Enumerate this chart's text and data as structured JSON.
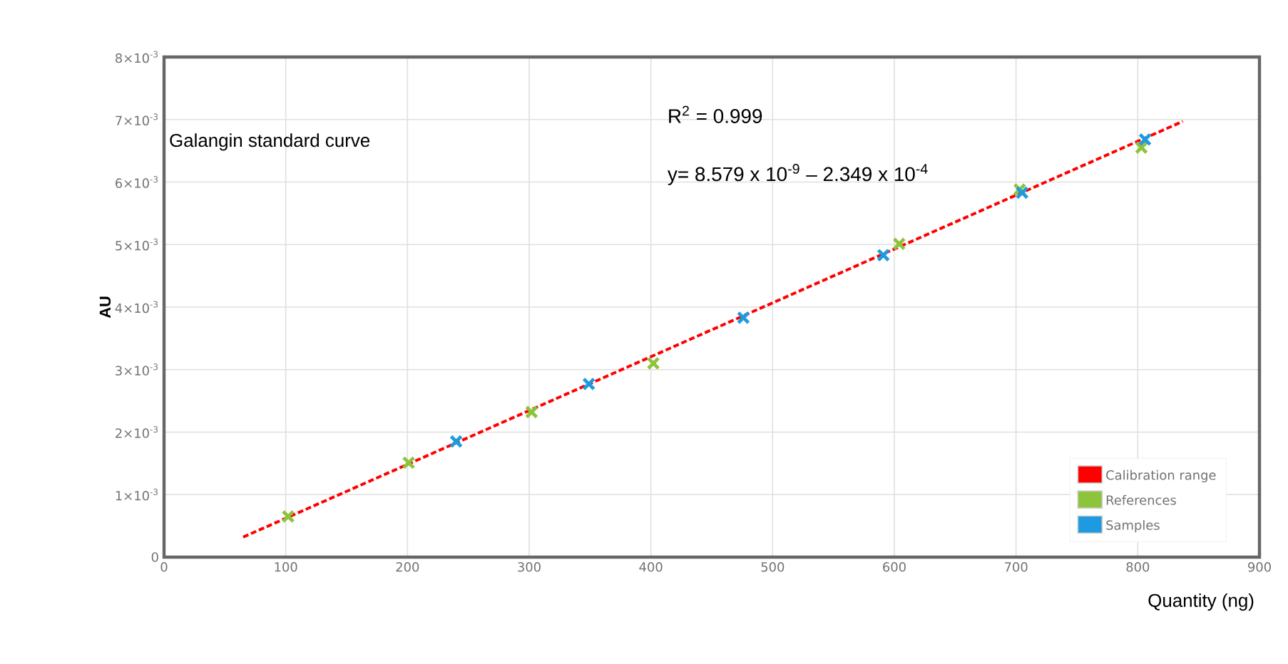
{
  "chart_data": {
    "type": "scatter",
    "xlabel": "Quantity (ng)",
    "ylabel": "AU",
    "annotations": [
      "Galangin standard curve",
      "R$^{2}$ = 0.999",
      "y= 8.579 x 10$^{-9}$ – 2.349 x 10$^{-4}$"
    ],
    "xlim": [
      0,
      900
    ],
    "xticks": [
      0,
      100,
      200,
      300,
      400,
      500,
      600,
      700,
      800,
      900
    ],
    "ylim": [
      0,
      0.008
    ],
    "yticks": [
      0,
      {
        "value": 0.001,
        "label": "1×10$^{-3}$"
      },
      {
        "value": 0.002,
        "label": "2×10$^{-3}$"
      },
      {
        "value": 0.003,
        "label": "3×10$^{-3}$"
      },
      {
        "value": 0.004,
        "label": "4×10$^{-3}$"
      },
      {
        "value": 0.005,
        "label": "5×10$^{-3}$"
      },
      {
        "value": 0.006,
        "label": "6×10$^{-3}$"
      },
      {
        "value": 0.007,
        "label": "7×10$^{-3}$"
      },
      {
        "value": 0.008,
        "label": "8×10$^{-3}$"
      }
    ],
    "grid": true,
    "legend": "bottom right",
    "series": [
      {
        "name": "Calibration range",
        "type": "line",
        "line_style": "dashed",
        "marker": "none",
        "color": "#ff0000",
        "x": [
          65,
          837
        ],
        "values": [
          0.00032,
          0.00697
        ]
      },
      {
        "name": "References",
        "marker": "cross",
        "color": "#8cc43c",
        "x": [
          102,
          201,
          302,
          402,
          604,
          703,
          803
        ],
        "values": [
          0.00065,
          0.00151,
          0.00232,
          0.0031,
          0.00501,
          0.00588,
          0.00655
        ]
      },
      {
        "name": "Samples",
        "marker": "cross",
        "color": "#1e9be0",
        "x": [
          240,
          349,
          476,
          591,
          705,
          806
        ],
        "values": [
          0.00185,
          0.00277,
          0.00383,
          0.00483,
          0.00583,
          0.00668
        ]
      }
    ]
  }
}
